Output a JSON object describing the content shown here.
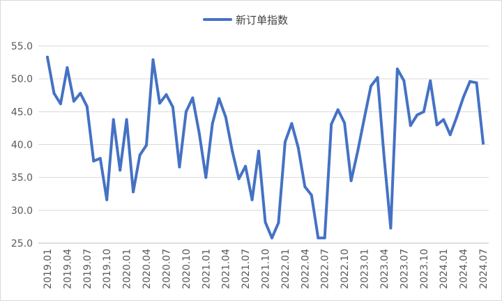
{
  "chart_data": {
    "type": "line",
    "title": "",
    "xlabel": "",
    "ylabel": "",
    "ylim": [
      25.0,
      55.0
    ],
    "yticks": [
      "25.0",
      "30.0",
      "35.0",
      "40.0",
      "45.0",
      "50.0",
      "55.0"
    ],
    "xtick_labels": [
      "2019.01",
      "2019.04",
      "2019.07",
      "2019.10",
      "2020.01",
      "2020.04",
      "2020.07",
      "2020.10",
      "2021.01",
      "2021.04",
      "2021.07",
      "2021.10",
      "2022.01",
      "2022.04",
      "2022.07",
      "2022.10",
      "2023.01",
      "2023.04",
      "2023.07",
      "2023.10",
      "2024.01",
      "2024.04",
      "2024.07"
    ],
    "grid": "horizontal",
    "legend_position": "top-center",
    "series": [
      {
        "name": "新订单指数",
        "color": "#4472C4",
        "x": [
          "2019.01",
          "2019.02",
          "2019.03",
          "2019.04",
          "2019.05",
          "2019.06",
          "2019.07",
          "2019.08",
          "2019.09",
          "2019.10",
          "2019.11",
          "2019.12",
          "2020.01",
          "2020.02",
          "2020.03",
          "2020.04",
          "2020.05",
          "2020.06",
          "2020.07",
          "2020.08",
          "2020.09",
          "2020.10",
          "2020.11",
          "2020.12",
          "2021.01",
          "2021.02",
          "2021.03",
          "2021.04",
          "2021.05",
          "2021.06",
          "2021.07",
          "2021.08",
          "2021.09",
          "2021.10",
          "2021.11",
          "2021.12",
          "2022.01",
          "2022.02",
          "2022.03",
          "2022.04",
          "2022.05",
          "2022.06",
          "2022.07",
          "2022.08",
          "2022.09",
          "2022.10",
          "2022.11",
          "2022.12",
          "2023.01",
          "2023.02",
          "2023.03",
          "2023.04",
          "2023.05",
          "2023.06",
          "2023.07",
          "2023.08",
          "2023.09",
          "2023.10",
          "2023.11",
          "2023.12",
          "2024.01",
          "2024.02",
          "2024.03",
          "2024.04",
          "2024.05",
          "2024.06",
          "2024.07"
        ],
        "values": [
          53.3,
          47.8,
          46.2,
          51.7,
          46.6,
          47.8,
          45.8,
          37.5,
          37.9,
          31.6,
          43.8,
          36.1,
          43.8,
          32.8,
          38.4,
          39.9,
          52.9,
          46.3,
          47.6,
          45.7,
          36.6,
          45.0,
          47.1,
          41.7,
          35.0,
          43.2,
          47.0,
          44.2,
          39.0,
          34.8,
          36.7,
          31.6,
          39.0,
          28.2,
          25.8,
          28.1,
          40.4,
          43.2,
          39.5,
          33.6,
          32.3,
          25.8,
          25.8,
          43.1,
          45.3,
          43.3,
          34.5,
          39.0,
          44.0,
          48.9,
          50.2,
          38.0,
          27.3,
          51.5,
          49.7,
          42.9,
          44.5,
          45.0,
          49.7,
          43.0,
          43.8,
          41.5,
          44.2,
          47.2,
          49.6,
          49.4,
          40.2
        ]
      }
    ]
  }
}
